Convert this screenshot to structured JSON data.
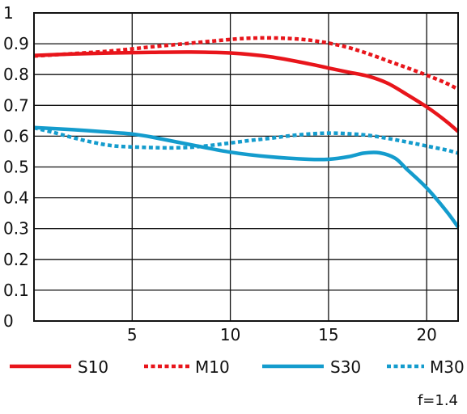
{
  "chart_data": {
    "type": "line",
    "xlim": [
      0,
      21.6
    ],
    "ylim": [
      0,
      1
    ],
    "x_ticks": [
      "5",
      "10",
      "15",
      "20"
    ],
    "y_ticks": [
      "0",
      "0.1",
      "0.2",
      "0.3",
      "0.4",
      "0.5",
      "0.6",
      "0.7",
      "0.8",
      "0.9",
      "1"
    ],
    "grid": true,
    "legend_position": "bottom",
    "annotation": "f=1.4",
    "series": [
      {
        "name": "S10",
        "color": "#e8151b",
        "style": "solid",
        "x": [
          0,
          2,
          4,
          6,
          8,
          10,
          12,
          14,
          15,
          16,
          17,
          18,
          19,
          20,
          21,
          21.6
        ],
        "y": [
          0.862,
          0.867,
          0.87,
          0.872,
          0.873,
          0.87,
          0.858,
          0.835,
          0.821,
          0.808,
          0.795,
          0.772,
          0.735,
          0.695,
          0.648,
          0.615
        ]
      },
      {
        "name": "M10",
        "color": "#e8151b",
        "style": "dashed",
        "x": [
          0,
          2,
          4,
          6,
          8,
          10,
          11,
          12,
          13,
          14,
          15,
          16,
          17,
          18,
          19,
          20,
          21,
          21.6
        ],
        "y": [
          0.86,
          0.868,
          0.877,
          0.89,
          0.902,
          0.914,
          0.918,
          0.919,
          0.917,
          0.912,
          0.902,
          0.888,
          0.868,
          0.845,
          0.822,
          0.798,
          0.772,
          0.752
        ]
      },
      {
        "name": "S30",
        "color": "#149ccd",
        "style": "solid",
        "x": [
          0,
          2,
          4,
          5,
          6,
          8,
          10,
          12,
          14,
          15,
          16,
          16.8,
          17.6,
          18.4,
          19,
          20,
          21,
          21.6
        ],
        "y": [
          0.628,
          0.621,
          0.612,
          0.607,
          0.597,
          0.572,
          0.548,
          0.533,
          0.525,
          0.525,
          0.533,
          0.545,
          0.546,
          0.528,
          0.492,
          0.432,
          0.357,
          0.305
        ]
      },
      {
        "name": "M30",
        "color": "#149ccd",
        "style": "dashed",
        "x": [
          0,
          1,
          2,
          3,
          4,
          5,
          6,
          7,
          8,
          9,
          10,
          11,
          12,
          13,
          14,
          15,
          16,
          17,
          18,
          19,
          20,
          21,
          21.6
        ],
        "y": [
          0.627,
          0.612,
          0.595,
          0.58,
          0.569,
          0.565,
          0.563,
          0.562,
          0.564,
          0.57,
          0.578,
          0.586,
          0.593,
          0.601,
          0.607,
          0.61,
          0.608,
          0.603,
          0.593,
          0.581,
          0.568,
          0.555,
          0.545
        ]
      }
    ]
  }
}
